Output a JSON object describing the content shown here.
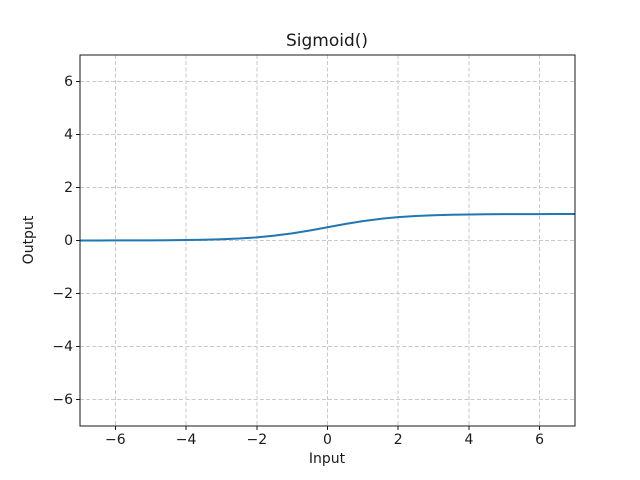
{
  "chart_data": {
    "type": "line",
    "title": "Sigmoid()",
    "xlabel": "Input",
    "ylabel": "Output",
    "xlim": [
      -7,
      7
    ],
    "ylim": [
      -7,
      7
    ],
    "xticks": {
      "values": [
        -6,
        -4,
        -2,
        0,
        2,
        4,
        6
      ],
      "labels": [
        "−6",
        "−4",
        "−2",
        "0",
        "2",
        "4",
        "6"
      ]
    },
    "yticks": {
      "values": [
        -6,
        -4,
        -2,
        0,
        2,
        4,
        6
      ],
      "labels": [
        "−6",
        "−4",
        "−2",
        "0",
        "2",
        "4",
        "6"
      ]
    },
    "grid": {
      "visible": true,
      "style": "dashed",
      "color": "#c9c9c9"
    },
    "legend": "none",
    "series": [
      {
        "name": "sigmoid",
        "color": "#1f77b4",
        "x": [
          -7,
          -6.5,
          -6,
          -5.5,
          -5,
          -4.5,
          -4,
          -3.5,
          -3,
          -2.5,
          -2,
          -1.5,
          -1,
          -0.5,
          0,
          0.5,
          1,
          1.5,
          2,
          2.5,
          3,
          3.5,
          4,
          4.5,
          5,
          5.5,
          6,
          6.5,
          7
        ],
        "y": [
          0.0009,
          0.0015,
          0.0025,
          0.0041,
          0.0067,
          0.011,
          0.018,
          0.0293,
          0.0474,
          0.0759,
          0.1192,
          0.1824,
          0.2689,
          0.3775,
          0.5,
          0.6225,
          0.7311,
          0.8176,
          0.8808,
          0.9241,
          0.9526,
          0.9707,
          0.982,
          0.989,
          0.9933,
          0.9959,
          0.9975,
          0.9985,
          0.9991
        ]
      }
    ]
  }
}
